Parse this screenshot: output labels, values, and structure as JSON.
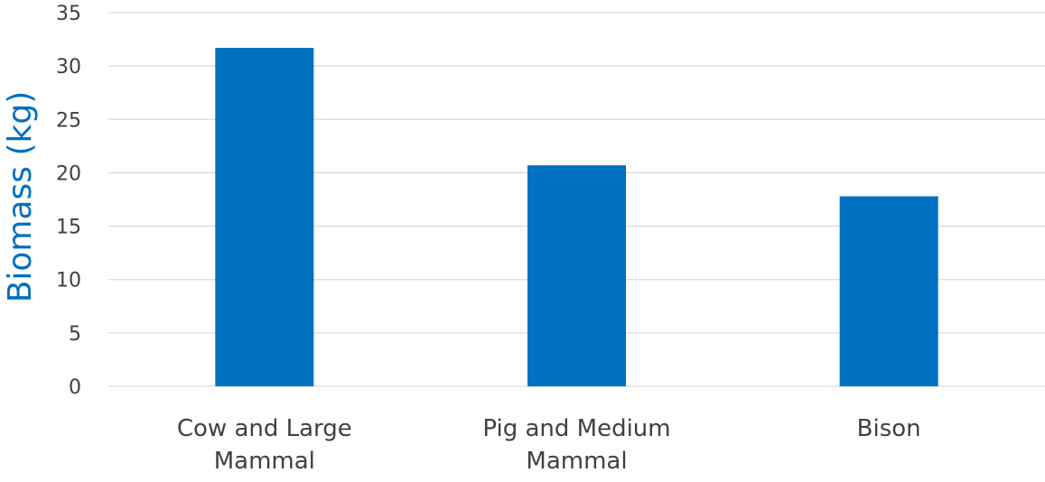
{
  "chart_data": {
    "type": "bar",
    "categories": [
      "Cow and Large Mammal",
      "Pig and Medium Mammal",
      "Bison"
    ],
    "category_lines": [
      [
        "Cow and Large",
        "Mammal"
      ],
      [
        "Pig and Medium",
        "Mammal"
      ],
      [
        "Bison"
      ]
    ],
    "values": [
      31.7,
      20.7,
      17.8
    ],
    "ylabel": "Biomass (kg)",
    "ylim": [
      0,
      35
    ],
    "yticks": [
      0,
      5,
      10,
      15,
      20,
      25,
      30,
      35
    ],
    "grid": true,
    "legend": "none",
    "colors": {
      "bar": "#0070c0",
      "ylabel": "#0070c0",
      "grid": "#d9d9d9",
      "text": "#404040"
    }
  }
}
